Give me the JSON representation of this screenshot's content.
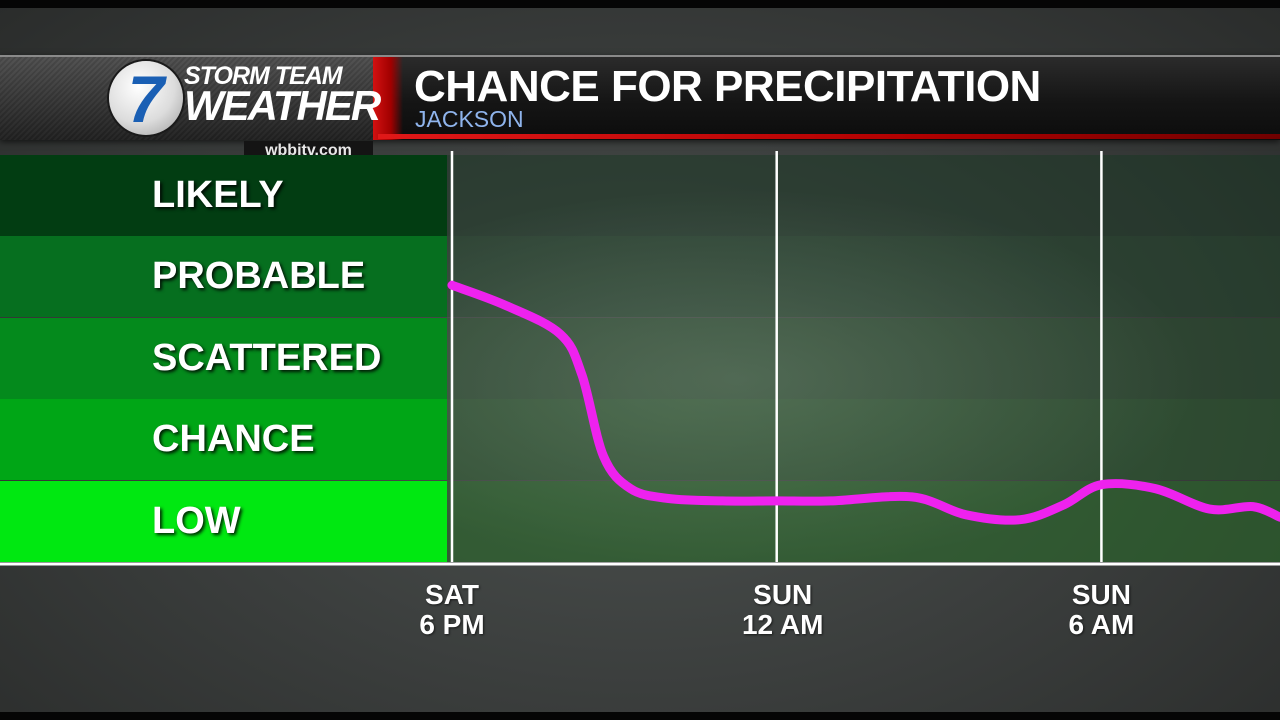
{
  "header": {
    "logo_number": "7",
    "logo_line1": "STORM TEAM",
    "logo_line2": "WEATHER",
    "url": "wbbjtv.com",
    "title": "CHANCE FOR PRECIPITATION",
    "subtitle": "JACKSON"
  },
  "colors": {
    "curve": "#ee22ee",
    "header_red": "#d31111",
    "subtitle_blue": "#8fb4ec"
  },
  "chart_data": {
    "type": "line",
    "title": "CHANCE FOR PRECIPITATION",
    "subtitle": "JACKSON",
    "y_categories": [
      "LOW",
      "CHANCE",
      "SCATTERED",
      "PROBABLE",
      "LIKELY"
    ],
    "ylim": [
      0,
      5
    ],
    "x_ticks": [
      {
        "line1": "SAT",
        "line2": "6 PM",
        "hour": 0
      },
      {
        "line1": "SUN",
        "line2": "12 AM",
        "hour": 6
      },
      {
        "line1": "SUN",
        "line2": "6 AM",
        "hour": 12
      }
    ],
    "xlim": [
      0,
      15.3
    ],
    "series": [
      {
        "color": "#ee22ee",
        "points": [
          {
            "hour": 0.0,
            "level": 3.4
          },
          {
            "hour": 1.0,
            "level": 3.15
          },
          {
            "hour": 2.0,
            "level": 2.8
          },
          {
            "hour": 2.4,
            "level": 2.3
          },
          {
            "hour": 2.8,
            "level": 1.3
          },
          {
            "hour": 3.3,
            "level": 0.9
          },
          {
            "hour": 4.0,
            "level": 0.78
          },
          {
            "hour": 5.0,
            "level": 0.75
          },
          {
            "hour": 6.0,
            "level": 0.75
          },
          {
            "hour": 7.0,
            "level": 0.75
          },
          {
            "hour": 8.5,
            "level": 0.8
          },
          {
            "hour": 9.5,
            "level": 0.58
          },
          {
            "hour": 10.5,
            "level": 0.52
          },
          {
            "hour": 11.3,
            "level": 0.7
          },
          {
            "hour": 12.0,
            "level": 0.95
          },
          {
            "hour": 13.0,
            "level": 0.9
          },
          {
            "hour": 14.0,
            "level": 0.65
          },
          {
            "hour": 14.8,
            "level": 0.68
          },
          {
            "hour": 15.3,
            "level": 0.55
          }
        ]
      }
    ],
    "grid": "vertical lines at x ticks"
  }
}
